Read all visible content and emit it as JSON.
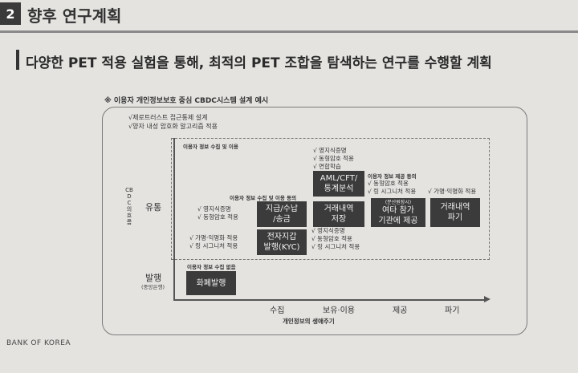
{
  "section": {
    "number": "2",
    "title": "향후 연구계획"
  },
  "headline": "다양한 PET 적용 실험을 통해, 최적의 PET 조합을 탐색하는 연구를 수행할 계획",
  "diagram": {
    "note": "※ 이용자 개인정보보호 중심 CBDC시스템 설계 예시",
    "intro_items": [
      "√제로트러스트 접근통제 설계",
      "√양자 내성 암호화 알고리즘 적용"
    ],
    "region_label": "이용자 정보 수집 및 이용",
    "y_axis_title": "CBDC의 흐름",
    "rows": [
      {
        "label": "유통",
        "sub": ""
      },
      {
        "label": "발행",
        "sub": "(중앙은행)"
      }
    ],
    "x_axis_title": "개인정보의 생애주기",
    "x_ticks": [
      "수집",
      "보유·이용",
      "제공",
      "파기"
    ],
    "labels": {
      "collect_use": "이용자 정보 수집 및 이용 동의",
      "provide": "이용자 정보 제공 동의",
      "no_collect": "이용자 정보 수집 없음"
    },
    "checklists": {
      "aml_top": [
        "√ 영지식증명",
        "√ 동형암호 적용",
        "√ 연합학습"
      ],
      "left_collect": [
        "√ 영지식증명",
        "√ 동형암호 적용"
      ],
      "left_wallet": [
        "√ 가명·익명화 적용",
        "√ 링 시그니처 적용"
      ],
      "provide_checks": [
        "√ 동형암호 적용",
        "√ 링 시그니처 적용"
      ],
      "destroy_check": [
        "√ 가명·익명화 적용"
      ],
      "bottom_mid": [
        "√ 영지식증명",
        "√ 동형암호 적용",
        "√ 링 시그니처 적용"
      ]
    },
    "boxes": {
      "aml": [
        "AML/CFT/",
        "통계분석"
      ],
      "payment": [
        "지급/수납",
        "/송금"
      ],
      "history": [
        "거래내역",
        "저장"
      ],
      "other_small": "(분산원장시)",
      "other": [
        "여타 참가",
        "기관에 제공"
      ],
      "destroy": [
        "거래내역",
        "파기"
      ],
      "wallet": [
        "전자지갑",
        "발행(KYC)"
      ],
      "issue": "화폐발행"
    }
  },
  "footer": "BANK OF KOREA"
}
